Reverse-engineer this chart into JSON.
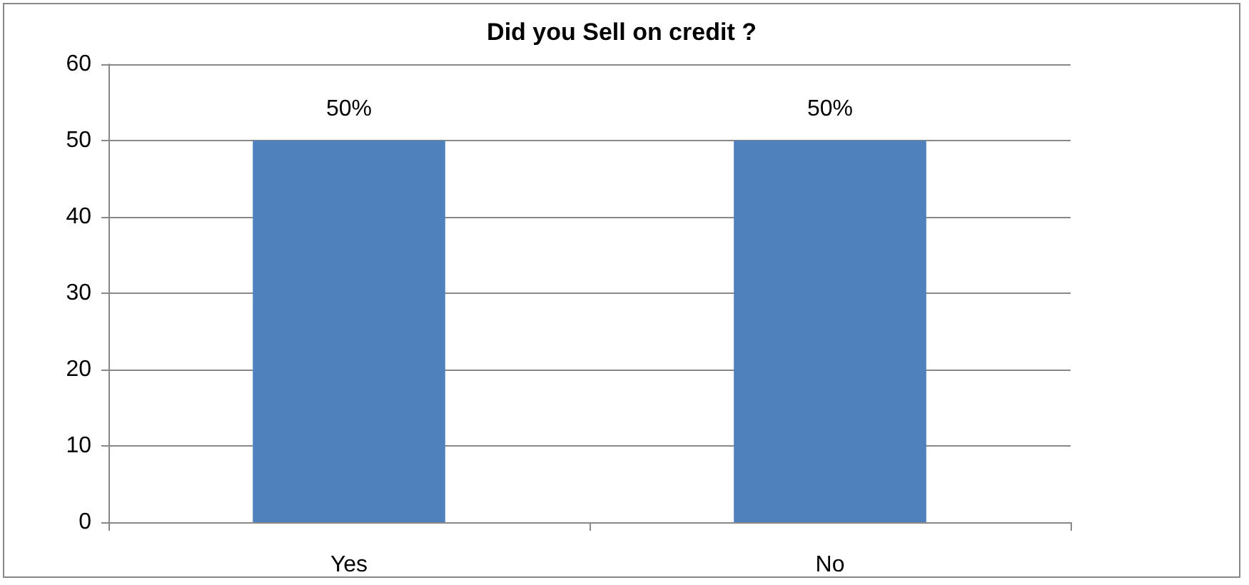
{
  "chart_data": {
    "type": "bar",
    "title": "Did you Sell on credit ?",
    "categories": [
      "Yes",
      "No"
    ],
    "values": [
      50,
      50
    ],
    "color": "#4f81bd",
    "value_labels": [
      "50%",
      "50%"
    ],
    "ylim": [
      0,
      60
    ],
    "yticks": [
      0,
      10,
      20,
      30,
      40,
      50,
      60
    ],
    "grid": "y"
  }
}
